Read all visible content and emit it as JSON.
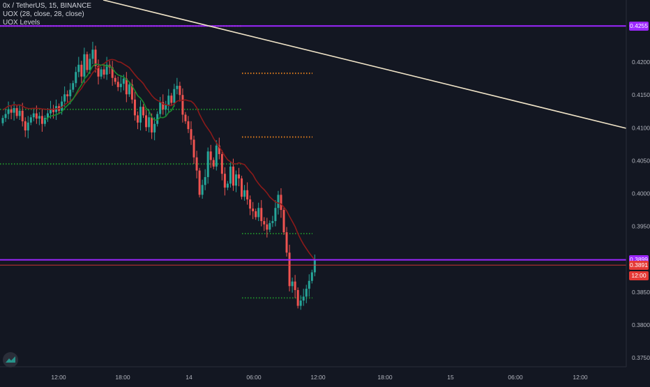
{
  "header": {
    "symbol_line": "0x / TetherUS, 15, BINANCE",
    "indicator_1": "UOX (28, close, 28, close)",
    "indicator_2": "UOX Levels"
  },
  "colors": {
    "background": "#131722",
    "up": "#26a69a",
    "down": "#ef5350",
    "ema": "#8b1a1a",
    "ema_short": "#1b8a2f",
    "purple": "#9c27ff",
    "trendline": "#f0e4c8",
    "orange_level": "#e07c1c",
    "green_level": "#1f8a2b",
    "red_level": "#e53935"
  },
  "chart_data": {
    "type": "candlestick",
    "title": "0x / TetherUS, 15, BINANCE",
    "y_ticks": [
      "0.4255",
      "0.4200",
      "0.4150",
      "0.4100",
      "0.4050",
      "0.4000",
      "0.3950",
      "0.3899",
      "0.3891",
      "0.3850",
      "0.3800",
      "0.3750"
    ],
    "x_ticks": [
      "12:00",
      "18:00",
      "14",
      "06:00",
      "12:00",
      "18:00",
      "15",
      "06:00",
      "12:00"
    ],
    "ylim": [
      0.3735,
      0.429
    ],
    "price_tags": [
      {
        "label": "0.4255",
        "value": 0.4255,
        "color": "#9c27ff"
      },
      {
        "label": "0.3899",
        "value": 0.3899,
        "color": "#9c27ff"
      },
      {
        "label": "0.3891",
        "value": 0.3891,
        "color": "#e53935"
      },
      {
        "label": "12:00",
        "value": 0.3875,
        "color": "#e53935"
      }
    ],
    "purple_levels": [
      0.4255,
      0.3899
    ],
    "red_level": 0.3891,
    "level_segments": [
      {
        "color": "orange",
        "price": 0.4255,
        "from": "10:00",
        "to": "05:45"
      },
      {
        "color": "orange",
        "price": 0.4183,
        "from": "05:45",
        "to": "11:45"
      },
      {
        "color": "orange",
        "price": 0.4086,
        "from": "05:45",
        "to": "11:45"
      },
      {
        "color": "green",
        "price": 0.4128,
        "from": "10:00",
        "to": "05:45"
      },
      {
        "color": "green",
        "price": 0.4045,
        "from": "10:00",
        "to": "05:45"
      },
      {
        "color": "green",
        "price": 0.3939,
        "from": "05:45",
        "to": "11:45"
      },
      {
        "color": "green",
        "price": 0.3841,
        "from": "05:45",
        "to": "11:45"
      }
    ],
    "trendline": {
      "from": {
        "time": "12:00 (-8)",
        "price": 0.4295
      },
      "to": {
        "time": "14:00 (+1d)",
        "price": 0.4101
      }
    },
    "candles_close": [
      0.4115,
      0.4121,
      0.4128,
      0.4123,
      0.413,
      0.4118,
      0.4126,
      0.411,
      0.4096,
      0.4108,
      0.4116,
      0.4122,
      0.4114,
      0.4118,
      0.4106,
      0.4115,
      0.4122,
      0.4129,
      0.4124,
      0.4133,
      0.4126,
      0.414,
      0.4151,
      0.4148,
      0.4158,
      0.4168,
      0.4185,
      0.4196,
      0.4178,
      0.4212,
      0.4188,
      0.4205,
      0.4219,
      0.4194,
      0.4178,
      0.4189,
      0.4181,
      0.4196,
      0.4192,
      0.4176,
      0.417,
      0.4162,
      0.4167,
      0.4175,
      0.4151,
      0.4166,
      0.4143,
      0.4119,
      0.4108,
      0.4132,
      0.4119,
      0.4101,
      0.4116,
      0.4093,
      0.4106,
      0.4121,
      0.4139,
      0.4128,
      0.4135,
      0.4149,
      0.4138,
      0.4159,
      0.4164,
      0.415,
      0.412,
      0.411,
      0.4098,
      0.4082,
      0.4055,
      0.4035,
      0.3998,
      0.4013,
      0.4025,
      0.4064,
      0.4051,
      0.4041,
      0.4073,
      0.406,
      0.403,
      0.4009,
      0.4015,
      0.4041,
      0.4012,
      0.4029,
      0.4023,
      0.3995,
      0.4005,
      0.3991,
      0.3977,
      0.3973,
      0.3964,
      0.3978,
      0.3958,
      0.3953,
      0.3945,
      0.3955,
      0.3958,
      0.3978,
      0.3998,
      0.3975,
      0.3941,
      0.391,
      0.3859,
      0.3866,
      0.3853,
      0.3829,
      0.3837,
      0.3843,
      0.3855,
      0.3867,
      0.388,
      0.3899
    ]
  }
}
